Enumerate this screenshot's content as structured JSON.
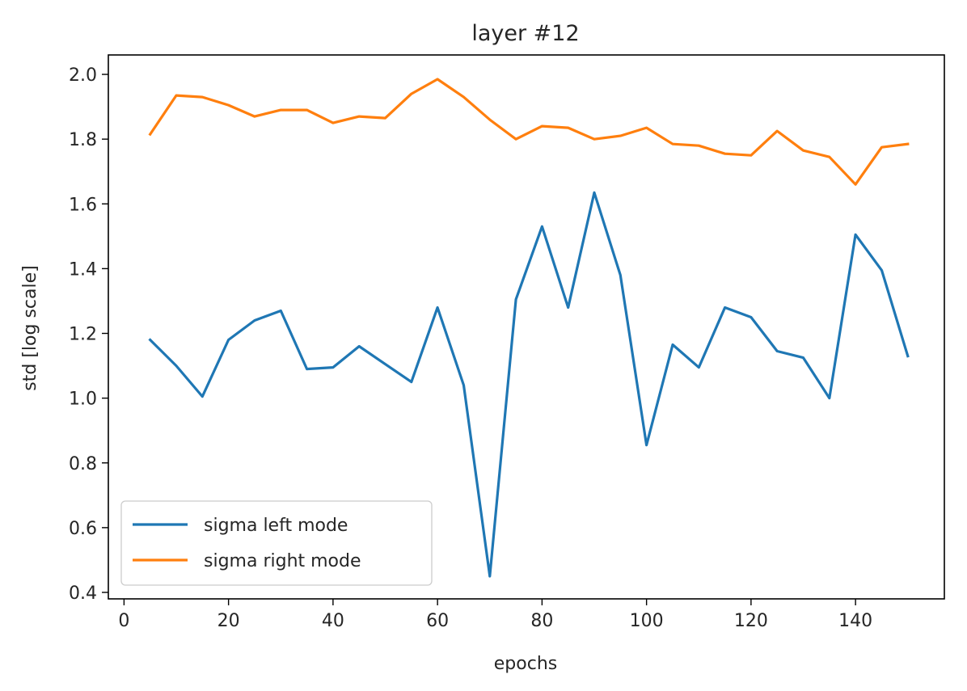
{
  "chart_data": {
    "type": "line",
    "title": "layer #12",
    "xlabel": "epochs",
    "ylabel": "std [log scale]",
    "xlim": [
      -3,
      157
    ],
    "ylim": [
      0.38,
      2.06
    ],
    "xticks": [
      0,
      20,
      40,
      60,
      80,
      100,
      120,
      140
    ],
    "yticks": [
      0.4,
      0.6,
      0.8,
      1.0,
      1.2,
      1.4,
      1.6,
      1.8,
      2.0
    ],
    "ytick_labels": [
      "0.4",
      "0.6",
      "0.8",
      "1.0",
      "1.2",
      "1.4",
      "1.6",
      "1.8",
      "2.0"
    ],
    "grid": false,
    "legend_position": "lower-left",
    "x": [
      5,
      10,
      15,
      20,
      25,
      30,
      35,
      40,
      45,
      50,
      55,
      60,
      65,
      70,
      75,
      80,
      85,
      90,
      95,
      100,
      105,
      110,
      115,
      120,
      125,
      130,
      135,
      140,
      145,
      150
    ],
    "series": [
      {
        "name": "sigma left mode",
        "color": "#1f77b4",
        "values": [
          1.18,
          1.1,
          1.005,
          1.18,
          1.24,
          1.27,
          1.09,
          1.095,
          1.16,
          1.105,
          1.05,
          1.28,
          1.04,
          0.45,
          1.305,
          1.53,
          1.28,
          1.635,
          1.38,
          0.855,
          1.165,
          1.095,
          1.28,
          1.25,
          1.145,
          1.125,
          1.0,
          1.505,
          1.395,
          1.13
        ]
      },
      {
        "name": "sigma right mode",
        "color": "#ff7f0e",
        "values": [
          1.815,
          1.935,
          1.93,
          1.905,
          1.87,
          1.89,
          1.89,
          1.85,
          1.87,
          1.865,
          1.94,
          1.985,
          1.93,
          1.86,
          1.8,
          1.84,
          1.835,
          1.8,
          1.81,
          1.835,
          1.785,
          1.78,
          1.755,
          1.75,
          1.825,
          1.765,
          1.745,
          1.66,
          1.775,
          1.785
        ]
      }
    ]
  }
}
